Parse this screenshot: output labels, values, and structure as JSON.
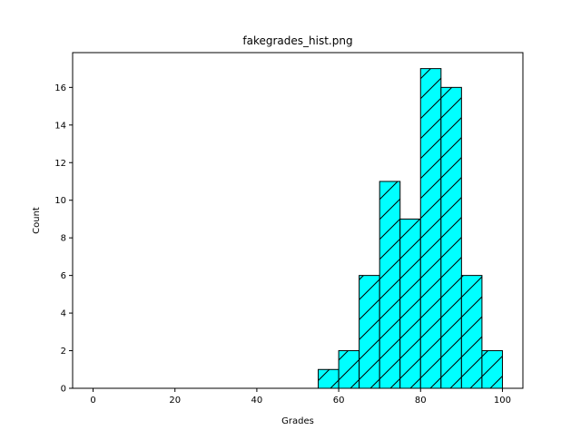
{
  "chart_data": {
    "type": "bar",
    "title": "fakegrades_hist.png",
    "xlabel": "Grades",
    "ylabel": "Count",
    "bin_edges": [
      55,
      60,
      65,
      70,
      75,
      80,
      85,
      90,
      95,
      100
    ],
    "values": [
      1,
      2,
      6,
      11,
      9,
      17,
      16,
      6,
      2
    ],
    "xlim": [
      -5,
      105
    ],
    "ylim": [
      0,
      17.85
    ],
    "xticks": [
      0,
      20,
      40,
      60,
      80,
      100
    ],
    "yticks": [
      0,
      2,
      4,
      6,
      8,
      10,
      12,
      14,
      16
    ],
    "bar_color": "#00ffff",
    "edge_color": "#000000",
    "hatch": "/",
    "grid": false
  }
}
